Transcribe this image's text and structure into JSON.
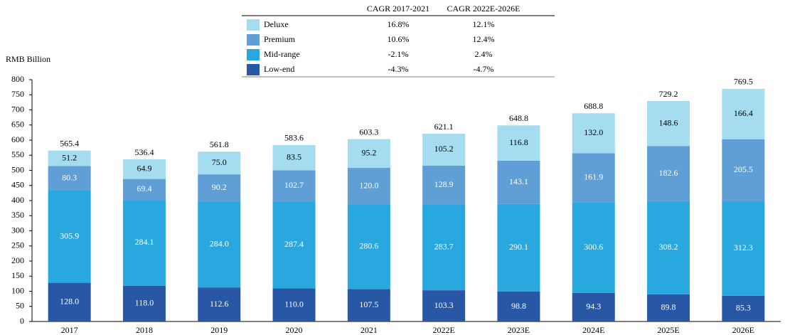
{
  "chart_data": {
    "type": "stacked_bar",
    "y_label": "RMB Billion",
    "categories": [
      "2017",
      "2018",
      "2019",
      "2020",
      "2021",
      "2022E",
      "2023E",
      "2024E",
      "2025E",
      "2026E"
    ],
    "series": [
      {
        "name": "Low-end",
        "color": "#2757a5",
        "cagr": [
          "-4.3%",
          "-4.7%"
        ],
        "values": [
          128.0,
          118.0,
          112.6,
          110.0,
          107.5,
          103.3,
          98.8,
          94.3,
          89.8,
          85.3
        ],
        "value_labels": [
          "128.0",
          "118.0",
          "112.6",
          "110.0",
          "107.5",
          "103.3",
          "98.8",
          "94.3",
          "89.8",
          "85.3"
        ]
      },
      {
        "name": "Mid-range",
        "color": "#29a8e0",
        "cagr": [
          "-2.1%",
          "2.4%"
        ],
        "values": [
          305.9,
          284.1,
          284.0,
          287.4,
          280.6,
          283.7,
          290.1,
          300.6,
          308.2,
          312.3
        ],
        "value_labels": [
          "305.9",
          "284.1",
          "284.0",
          "287.4",
          "280.6",
          "283.7",
          "290.1",
          "300.6",
          "308.2",
          "312.3"
        ]
      },
      {
        "name": "Premium",
        "color": "#5f9fd6",
        "cagr": [
          "10.6%",
          "12.4%"
        ],
        "values": [
          80.3,
          69.4,
          90.2,
          102.7,
          120.0,
          128.9,
          143.1,
          161.9,
          182.6,
          205.5
        ],
        "value_labels": [
          "80.3",
          "69.4",
          "90.2",
          "102.7",
          "120.0",
          "128.9",
          "143.1",
          "161.9",
          "182.6",
          "205.5"
        ]
      },
      {
        "name": "Deluxe",
        "color": "#a6dcf0",
        "cagr": [
          "16.8%",
          "12.1%"
        ],
        "values": [
          51.2,
          64.9,
          75.0,
          83.5,
          95.2,
          105.2,
          116.8,
          132.0,
          148.6,
          166.4
        ],
        "value_labels": [
          "51.2",
          "64.9",
          "75.0",
          "83.5",
          "95.2",
          "105.2",
          "116.8",
          "132.0",
          "148.6",
          "166.4"
        ]
      }
    ],
    "totals": [
      565.4,
      536.4,
      561.8,
      583.6,
      603.3,
      621.1,
      648.8,
      688.8,
      729.2,
      769.5
    ],
    "cagr_headers": [
      "CAGR 2017-2021",
      "CAGR 2022E-2026E"
    ],
    "ylim": [
      0,
      800
    ],
    "yticks": [
      0,
      50,
      100,
      150,
      200,
      250,
      300,
      350,
      400,
      450,
      500,
      550,
      600,
      650,
      700,
      750,
      800
    ]
  }
}
